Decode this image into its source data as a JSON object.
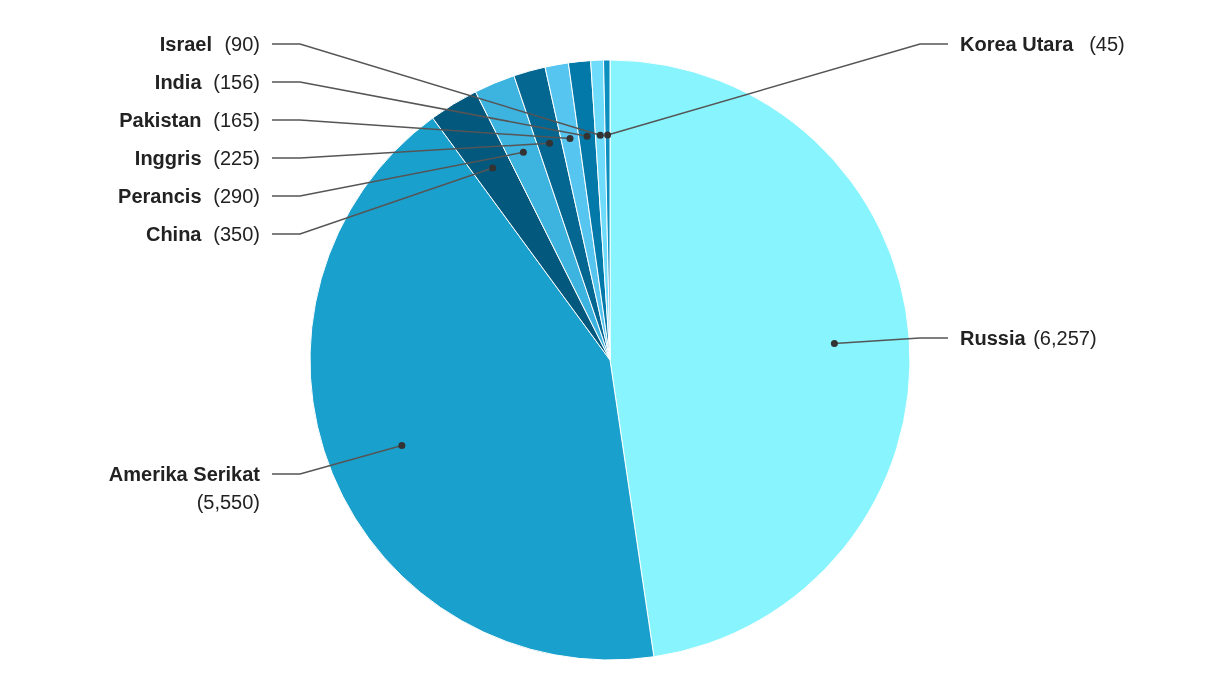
{
  "chart_data": {
    "type": "pie",
    "categories": [
      "Russia",
      "Amerika Serikat",
      "China",
      "Perancis",
      "Inggris",
      "Pakistan",
      "India",
      "Israel",
      "Korea Utara"
    ],
    "values": [
      6257,
      5550,
      350,
      290,
      225,
      165,
      156,
      90,
      45
    ],
    "value_labels": [
      "(6,257)",
      "(5,550)",
      "(350)",
      "(290)",
      "(225)",
      "(165)",
      "(156)",
      "(90)",
      "(45)"
    ],
    "colors": [
      "#88f4fd",
      "#1aa0cd",
      "#02587d",
      "#3db4e0",
      "#036791",
      "#56c5f0",
      "#0279a8",
      "#6fdcfc",
      "#0a8fc0"
    ]
  }
}
